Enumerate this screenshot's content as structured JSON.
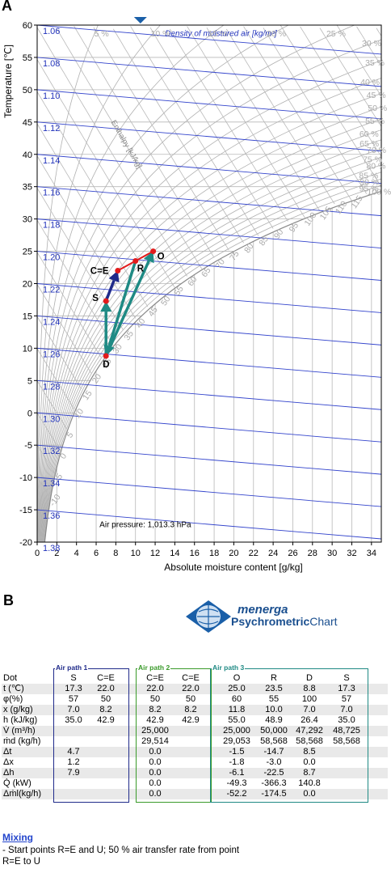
{
  "panel_a_label": "A",
  "panel_b_label": "B",
  "chart_data": {
    "type": "scatter",
    "title": "",
    "xlabel": "Absolute moisture content [g/kg]",
    "ylabel": "Temperature [℃]",
    "xlim": [
      0,
      35
    ],
    "ylim": [
      -20,
      60
    ],
    "x_ticks": [
      0,
      2,
      4,
      6,
      8,
      10,
      12,
      14,
      16,
      18,
      20,
      22,
      24,
      26,
      28,
      30,
      32,
      34
    ],
    "y_ticks": [
      -20,
      -15,
      -10,
      -5,
      0,
      5,
      10,
      15,
      20,
      25,
      30,
      35,
      40,
      45,
      50,
      55,
      60
    ],
    "grid": true,
    "density_lines_label": "Density of moistured air [kg/m³]",
    "enthalpy_label": "Enthalpy [kJ/kg]",
    "density_values": [
      "1.06",
      "1.08",
      "1.10",
      "1.12",
      "1.14",
      "1.16",
      "1.18",
      "1.20",
      "1.22",
      "1.24",
      "1.26",
      "1.28",
      "1.30",
      "1.32",
      "1.34",
      "1.36",
      "1.38"
    ],
    "rh_labels": [
      "5 %",
      "10 %",
      "15 %",
      "20 %",
      "25 %",
      "30 %",
      "35 %",
      "40 %",
      "45 %",
      "50 %",
      "55 %",
      "60 %",
      "65 %",
      "70 %",
      "75 %",
      "80 %",
      "85 %",
      "90 %",
      "95 %",
      "100 %"
    ],
    "enthalpy_values": [
      "-10",
      "-5",
      "0",
      "5",
      "10",
      "15",
      "20",
      "25",
      "30",
      "35",
      "40",
      "45",
      "50",
      "55",
      "60",
      "65",
      "70",
      "75",
      "80",
      "85",
      "90",
      "95",
      "100",
      "105",
      "110",
      "115",
      "120"
    ],
    "air_pressure": "Air pressure: 1,013.3 hPa",
    "points": [
      {
        "name": "C=E",
        "x": 8.2,
        "y": 22.0
      },
      {
        "name": "R",
        "x": 10.0,
        "y": 23.5
      },
      {
        "name": "O",
        "x": 11.8,
        "y": 25.0
      },
      {
        "name": "S",
        "x": 7.0,
        "y": 17.3
      },
      {
        "name": "D",
        "x": 7.0,
        "y": 8.8
      }
    ],
    "arrows": [
      {
        "from": "S",
        "to": "C=E",
        "color": "#1f2a8a"
      },
      {
        "from": "D",
        "to": "S",
        "color": "#1f8a84"
      },
      {
        "from": "R",
        "to": "D",
        "color": "#1f8a84"
      },
      {
        "from": "D",
        "to": "O",
        "color": "#1f8a84"
      }
    ],
    "red_path": [
      "C=E",
      "R",
      "O"
    ]
  },
  "logo": {
    "line1": "menerga",
    "line2a": "Psychrometric",
    "line2b": "Chart"
  },
  "table": {
    "path_labels": [
      "Air path 1",
      "Air path 2",
      "Air path 3"
    ],
    "path_colors": [
      "#1f2a8a",
      "#3a9a2a",
      "#1f8a84"
    ],
    "rows": [
      {
        "label": "Dot",
        "values": [
          "S",
          "C=E",
          "C=E",
          "C=E",
          "O",
          "R",
          "D",
          "S"
        ]
      },
      {
        "label": "t (℃)",
        "values": [
          "17.3",
          "22.0",
          "22.0",
          "22.0",
          "25.0",
          "23.5",
          "8.8",
          "17.3"
        ]
      },
      {
        "label": "φ(%)",
        "values": [
          "57",
          "50",
          "50",
          "50",
          "60",
          "55",
          "100",
          "57"
        ]
      },
      {
        "label": "x (g/kg)",
        "values": [
          "7.0",
          "8.2",
          "8.2",
          "8.2",
          "11.8",
          "10.0",
          "7.0",
          "7.0"
        ]
      },
      {
        "label": "h (kJ/kg)",
        "values": [
          "35.0",
          "42.9",
          "42.9",
          "42.9",
          "55.0",
          "48.9",
          "26.4",
          "35.0"
        ]
      },
      {
        "label": "V̇ (m³/h)",
        "values": [
          "",
          "",
          "25,000",
          "",
          "25,000",
          "50,000",
          "47,292",
          "48,725"
        ]
      },
      {
        "label": "ṁd (kg/h)",
        "values": [
          "",
          "",
          "29,514",
          "",
          "29,053",
          "58,568",
          "58,568",
          "58,568"
        ]
      },
      {
        "label": "Δt",
        "values": [
          "4.7",
          "",
          "0.0",
          "",
          "-1.5",
          "-14.7",
          "8.5",
          ""
        ]
      },
      {
        "label": "Δx",
        "values": [
          "1.2",
          "",
          "0.0",
          "",
          "-1.8",
          "-3.0",
          "0.0",
          ""
        ]
      },
      {
        "label": "Δh",
        "values": [
          "7.9",
          "",
          "0.0",
          "",
          "-6.1",
          "-22.5",
          "8.7",
          ""
        ]
      },
      {
        "label": "Q̇ (kW)",
        "values": [
          "",
          "",
          "0.0",
          "",
          "-49.3",
          "-366.3",
          "140.8",
          ""
        ]
      },
      {
        "label": "Δṁl(kg/h)",
        "values": [
          "",
          "",
          "0.0",
          "",
          "-52.2",
          "-174.5",
          "0.0",
          ""
        ]
      }
    ]
  },
  "mixing": {
    "title": "Mixing",
    "line1": " - Start points R=E and U; 50 % air transfer rate from point",
    "line2": "R=E to U"
  }
}
